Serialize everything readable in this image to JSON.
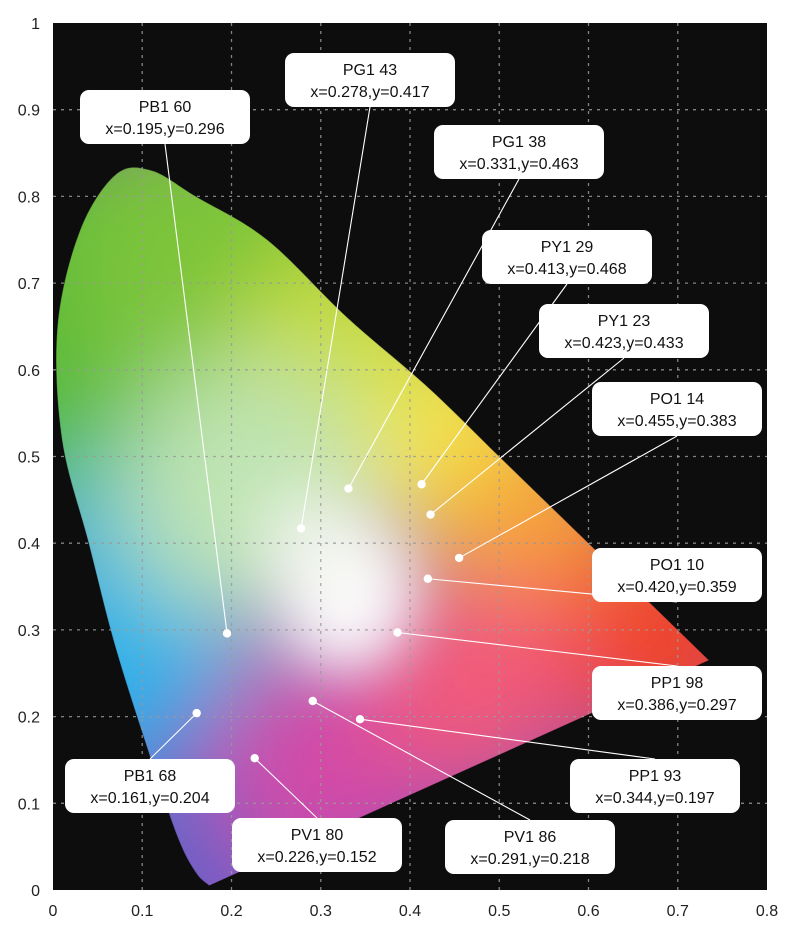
{
  "chart_data": {
    "type": "scatter",
    "title": "",
    "xlabel": "",
    "ylabel": "",
    "xlim": [
      0,
      0.8
    ],
    "ylim": [
      0,
      1
    ],
    "x_ticks": [
      "0",
      "0.1",
      "0.2",
      "0.3",
      "0.4",
      "0.5",
      "0.6",
      "0.7",
      "0.8"
    ],
    "y_ticks": [
      "0",
      "0.1",
      "0.2",
      "0.3",
      "0.4",
      "0.5",
      "0.6",
      "0.7",
      "0.8",
      "0.9",
      "1"
    ],
    "grid": true,
    "background": "#0d0d0d",
    "spectral_locus": [
      [
        0.175,
        0.005
      ],
      [
        0.16,
        0.02
      ],
      [
        0.14,
        0.06
      ],
      [
        0.11,
        0.15
      ],
      [
        0.07,
        0.28
      ],
      [
        0.04,
        0.4
      ],
      [
        0.01,
        0.52
      ],
      [
        0.005,
        0.65
      ],
      [
        0.03,
        0.76
      ],
      [
        0.07,
        0.825
      ],
      [
        0.11,
        0.83
      ],
      [
        0.16,
        0.8
      ],
      [
        0.24,
        0.75
      ],
      [
        0.33,
        0.66
      ],
      [
        0.42,
        0.58
      ],
      [
        0.5,
        0.5
      ],
      [
        0.58,
        0.42
      ],
      [
        0.66,
        0.34
      ],
      [
        0.735,
        0.265
      ]
    ],
    "points": [
      {
        "name": "PG1 43",
        "text": "x=0.278,y=0.417",
        "x": 0.278,
        "y": 0.417
      },
      {
        "name": "PB1 60",
        "text": "x=0.195,y=0.296",
        "x": 0.195,
        "y": 0.296
      },
      {
        "name": "PG1 38",
        "text": "x=0.331,y=0.463",
        "x": 0.331,
        "y": 0.463
      },
      {
        "name": "PY1 29",
        "text": "x=0.413,y=0.468",
        "x": 0.413,
        "y": 0.468
      },
      {
        "name": "PY1 23",
        "text": "x=0.423,y=0.433",
        "x": 0.423,
        "y": 0.433
      },
      {
        "name": "PO1 14",
        "text": "x=0.455,y=0.383",
        "x": 0.455,
        "y": 0.383
      },
      {
        "name": "PO1 10",
        "text": "x=0.420,y=0.359",
        "x": 0.42,
        "y": 0.359
      },
      {
        "name": "PP1 98",
        "text": "x=0.386,y=0.297",
        "x": 0.386,
        "y": 0.297
      },
      {
        "name": "PB1 68",
        "text": "x=0.161,y=0.204",
        "x": 0.161,
        "y": 0.204
      },
      {
        "name": "PP1 93",
        "text": "x=0.344,y=0.197",
        "x": 0.344,
        "y": 0.197
      },
      {
        "name": "PV1 80",
        "text": "x=0.226,y=0.152",
        "x": 0.226,
        "y": 0.152
      },
      {
        "name": "PV1 86",
        "text": "x=0.291,y=0.218",
        "x": 0.291,
        "y": 0.218
      }
    ]
  }
}
